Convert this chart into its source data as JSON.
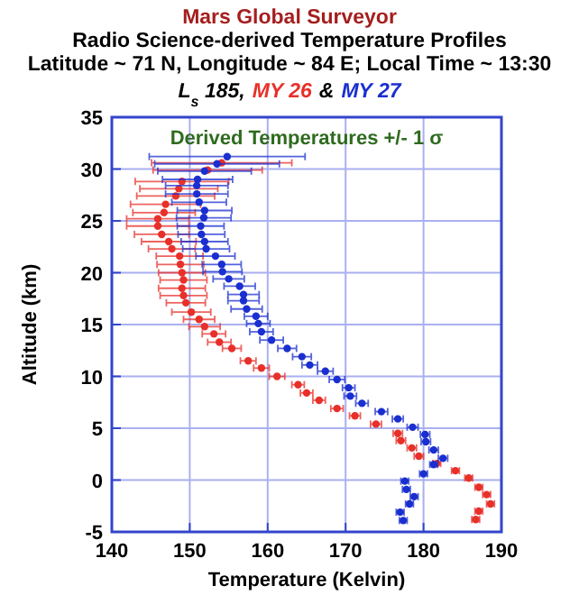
{
  "chart_data": {
    "type": "scatter",
    "title": "Mars Global Surveyor",
    "subtitle": "Radio Science-derived Temperature Profiles\nLatitude ~ 71 N, Longitude ~ 84 E; Local Time ~ 13:30",
    "legend_title": "L$_{s}$ 185,",
    "annotations": [
      "Derived Temperatures +/- 1 σ",
      "&"
    ],
    "xlabel": "Temperature (Kelvin)",
    "ylabel": "Altitude (km)",
    "xlim": [
      140,
      190
    ],
    "xticks": [
      140,
      150,
      160,
      170,
      180,
      190
    ],
    "ylim": [
      -5,
      35
    ],
    "yticks": [
      -5,
      0,
      5,
      10,
      15,
      20,
      25,
      30,
      35
    ],
    "grid": true,
    "legend": "top",
    "marker": "circle",
    "series": [
      {
        "name": "MY 26",
        "color": "#e8302a",
        "x": [
          154.1,
          152.3,
          149.0,
          148.6,
          148.2,
          146.9,
          146.7,
          145.9,
          145.9,
          146.4,
          147.3,
          147.7,
          148.7,
          148.8,
          149.0,
          149.2,
          149.0,
          149.2,
          149.5,
          150.2,
          151.2,
          151.9,
          153.1,
          153.8,
          155.4,
          157.5,
          159.2,
          161.2,
          163.9,
          165.0,
          166.6,
          168.9,
          171.2,
          173.9,
          176.7,
          177.1,
          178.5,
          179.4,
          181.7,
          184.1,
          185.8,
          187.1,
          188.1,
          188.6,
          187.1,
          186.7
        ],
        "values": [
          30.6,
          29.9,
          28.8,
          28.1,
          27.4,
          26.6,
          25.8,
          25.2,
          24.5,
          23.7,
          23.0,
          22.3,
          21.6,
          20.8,
          20.0,
          19.3,
          18.5,
          17.8,
          17.1,
          16.2,
          15.5,
          14.8,
          14.1,
          13.3,
          12.7,
          11.5,
          10.8,
          10.0,
          9.2,
          8.4,
          7.7,
          6.9,
          6.2,
          5.4,
          4.5,
          3.8,
          3.1,
          2.3,
          1.6,
          0.9,
          0.2,
          -0.7,
          -1.4,
          -2.3,
          -3.0,
          -3.8
        ],
        "xerrors": [
          9,
          7,
          6,
          5,
          5,
          4.5,
          4,
          4,
          4,
          3.5,
          3.5,
          3,
          3,
          3,
          3,
          3,
          3,
          3,
          2.5,
          2.5,
          2,
          2,
          1.5,
          1.5,
          1.2,
          1,
          1,
          1,
          0.8,
          0.8,
          0.8,
          0.8,
          0.7,
          0.7,
          0.6,
          0.6,
          0.6,
          0.6,
          0.5,
          0.5,
          0.5,
          0.5,
          0.5,
          0.5,
          0.5,
          0.5
        ]
      },
      {
        "name": "MY 27",
        "color": "#1a2fd0",
        "x": [
          154.8,
          153.5,
          151.9,
          151.0,
          150.9,
          150.9,
          151.2,
          151.9,
          151.8,
          151.4,
          151.5,
          151.9,
          152.1,
          153.3,
          154.1,
          154.2,
          155.0,
          156.4,
          156.9,
          156.9,
          157.3,
          158.5,
          158.8,
          159.2,
          160.5,
          162.5,
          164.4,
          165.4,
          167.4,
          168.9,
          170.4,
          170.6,
          172.1,
          174.6,
          176.7,
          178.6,
          180.2,
          180.3,
          181.3,
          182.5,
          181.3,
          180.0,
          177.6,
          177.8,
          178.8,
          178.2,
          177.0,
          177.4
        ],
        "values": [
          31.2,
          30.5,
          29.8,
          29.0,
          28.4,
          27.6,
          26.8,
          26.0,
          25.3,
          24.5,
          23.7,
          23.0,
          22.3,
          21.6,
          20.8,
          20.1,
          19.4,
          18.7,
          17.9,
          17.3,
          16.5,
          15.8,
          15.1,
          14.3,
          13.5,
          12.7,
          11.9,
          11.1,
          10.5,
          9.7,
          8.9,
          8.1,
          7.4,
          6.6,
          5.9,
          5.1,
          4.4,
          3.7,
          2.9,
          2.1,
          1.5,
          0.6,
          -0.1,
          -0.9,
          -1.6,
          -2.3,
          -3.1,
          -3.9
        ],
        "xerrors": [
          10,
          8,
          6,
          4.5,
          4,
          4,
          3.5,
          3.5,
          3.5,
          3,
          3,
          3,
          3,
          2.5,
          2.5,
          2.5,
          2,
          2,
          2,
          2,
          2,
          1.5,
          1.5,
          1.5,
          1.5,
          1.2,
          1.2,
          1,
          1,
          1,
          0.8,
          0.8,
          0.8,
          0.8,
          0.7,
          0.7,
          0.6,
          0.6,
          0.6,
          0.6,
          0.5,
          0.5,
          0.5,
          0.5,
          0.5,
          0.5,
          0.5,
          0.5
        ]
      }
    ]
  }
}
